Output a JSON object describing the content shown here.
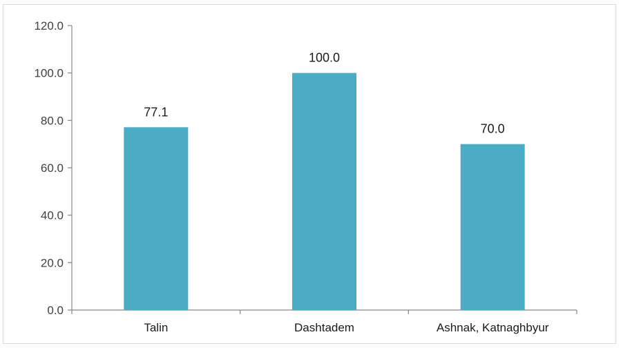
{
  "chart_data": {
    "type": "bar",
    "categories": [
      "Talin",
      "Dashtadem",
      "Ashnak, Katnaghbyur"
    ],
    "values": [
      77.1,
      100.0,
      70.0
    ],
    "data_labels": [
      "77.1",
      "100.0",
      "70.0"
    ],
    "ylim": [
      0,
      120
    ],
    "yticks": [
      0,
      20,
      40,
      60,
      80,
      100,
      120
    ],
    "ytick_labels": [
      "0.0",
      "20.0",
      "40.0",
      "60.0",
      "80.0",
      "100.0",
      "120.0"
    ],
    "title": "",
    "xlabel": "",
    "ylabel": "",
    "grid": false,
    "legend": "none",
    "bar_color": "#4BACC6"
  }
}
